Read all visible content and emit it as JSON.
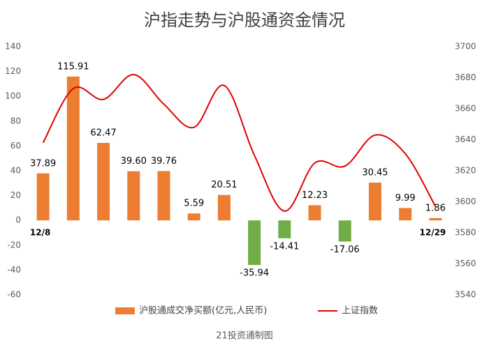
{
  "chart_data": {
    "type": "bar",
    "title": "沪指走势与沪股通资金情况",
    "source": "21投资通制图",
    "categories": [
      "12/8",
      null,
      null,
      null,
      null,
      null,
      null,
      null,
      null,
      null,
      null,
      null,
      null,
      "12/29"
    ],
    "series": [
      {
        "name": "沪股通成交净买额(亿元,人民币)",
        "type": "bar",
        "color": "#ed7d31",
        "negative_color": "#70ad47",
        "values": [
          37.89,
          115.91,
          62.47,
          39.6,
          39.76,
          5.59,
          20.51,
          -35.94,
          -14.41,
          12.23,
          -17.06,
          30.45,
          9.99,
          1.86
        ],
        "value_labels": [
          "37.89",
          "115.91",
          "62.47",
          "39.60",
          "39.76",
          "5.59",
          "20.51",
          "-35.94",
          "-14.41",
          "12.23",
          "-17.06",
          "30.45",
          "9.99",
          "1.86"
        ]
      },
      {
        "name": "上证指数",
        "type": "line",
        "axis": "y2",
        "color": "#e00000",
        "values": [
          3638,
          3673,
          3666,
          3682,
          3663,
          3648,
          3675,
          3630,
          3594,
          3625,
          3623,
          3643,
          3631,
          3597
        ]
      }
    ],
    "ylim": [
      -60,
      140
    ],
    "yticks": [
      -60,
      -40,
      -20,
      0,
      20,
      40,
      60,
      80,
      100,
      120,
      140
    ],
    "y2lim": [
      3540,
      3700
    ],
    "y2ticks": [
      3540,
      3560,
      3580,
      3600,
      3620,
      3640,
      3660,
      3680,
      3700
    ],
    "grid": false
  }
}
